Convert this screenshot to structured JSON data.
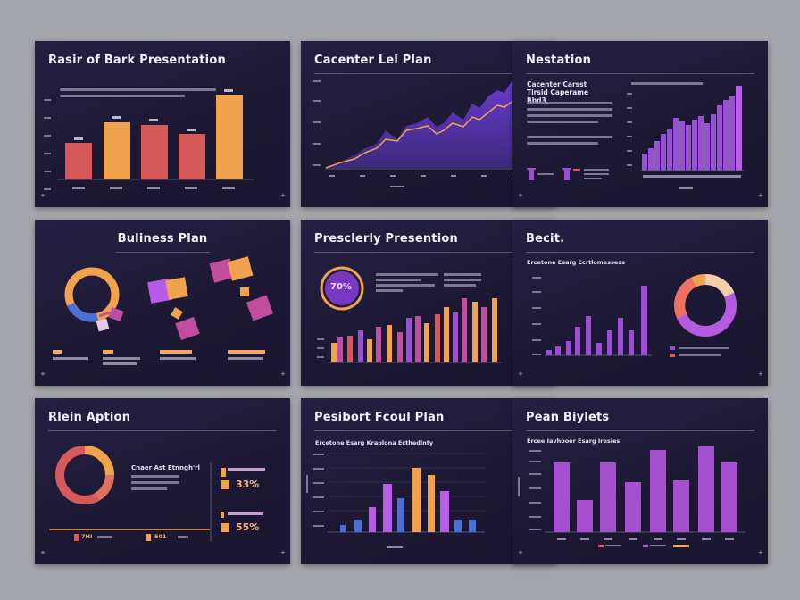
{
  "slides": [
    {
      "title": "Rasir of Bark Presentation"
    },
    {
      "title": "Cacenter Lel Plan"
    },
    {
      "title": "Nestation",
      "subtitle": "Cacenter Carsst Tirsid Caperame Bbd3"
    },
    {
      "title": "Buliness Plan"
    },
    {
      "title": "Presclerly Presention",
      "badge": "70%"
    },
    {
      "title": "Becit.",
      "subtitle": "Ercetone Esarg Ecrtlomessess"
    },
    {
      "title": "Rlein Aption",
      "subtitle": "Cnaer Ast Etnngh'rl",
      "kpi1": "33%",
      "kpi2": "55%",
      "foot1": "7HI",
      "foot2": "501"
    },
    {
      "title": "Pesibort Fcoul Plan",
      "subtitle": "Ercetone Esarg Kraplona Ecthedlnty"
    },
    {
      "title": "Pean Biylets",
      "subtitle": "Ercee Iavhooer Esarg Iresies"
    }
  ],
  "colors": {
    "coral": "#d65a5a",
    "orange": "#f0a24e",
    "purple": "#9a4fd6",
    "violet": "#b85ce8",
    "blue": "#4a6fd6",
    "magenta": "#c04d9e"
  }
}
